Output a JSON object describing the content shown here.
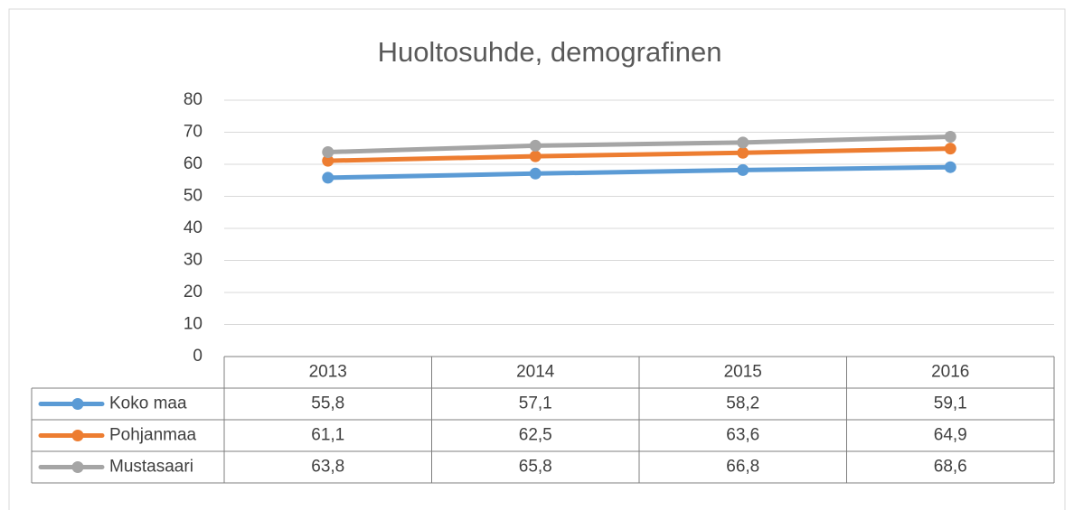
{
  "chart_data": {
    "type": "line",
    "title": "Huoltosuhde, demografinen",
    "categories": [
      "2013",
      "2014",
      "2015",
      "2016"
    ],
    "series": [
      {
        "name": "Koko maa",
        "color": "#5b9bd5",
        "values": [
          55.8,
          57.1,
          58.2,
          59.1
        ],
        "value_labels": [
          "55,8",
          "57,1",
          "58,2",
          "59,1"
        ]
      },
      {
        "name": "Pohjanmaa",
        "color": "#ed7d31",
        "values": [
          61.1,
          62.5,
          63.6,
          64.9
        ],
        "value_labels": [
          "61,1",
          "62,5",
          "63,6",
          "64,9"
        ]
      },
      {
        "name": "Mustasaari",
        "color": "#a5a5a5",
        "values": [
          63.8,
          65.8,
          66.8,
          68.6
        ],
        "value_labels": [
          "63,8",
          "65,8",
          "66,8",
          "68,6"
        ]
      }
    ],
    "ylim": [
      0,
      80
    ],
    "yticks": [
      0,
      10,
      20,
      30,
      40,
      50,
      60,
      70,
      80
    ],
    "grid": true
  }
}
